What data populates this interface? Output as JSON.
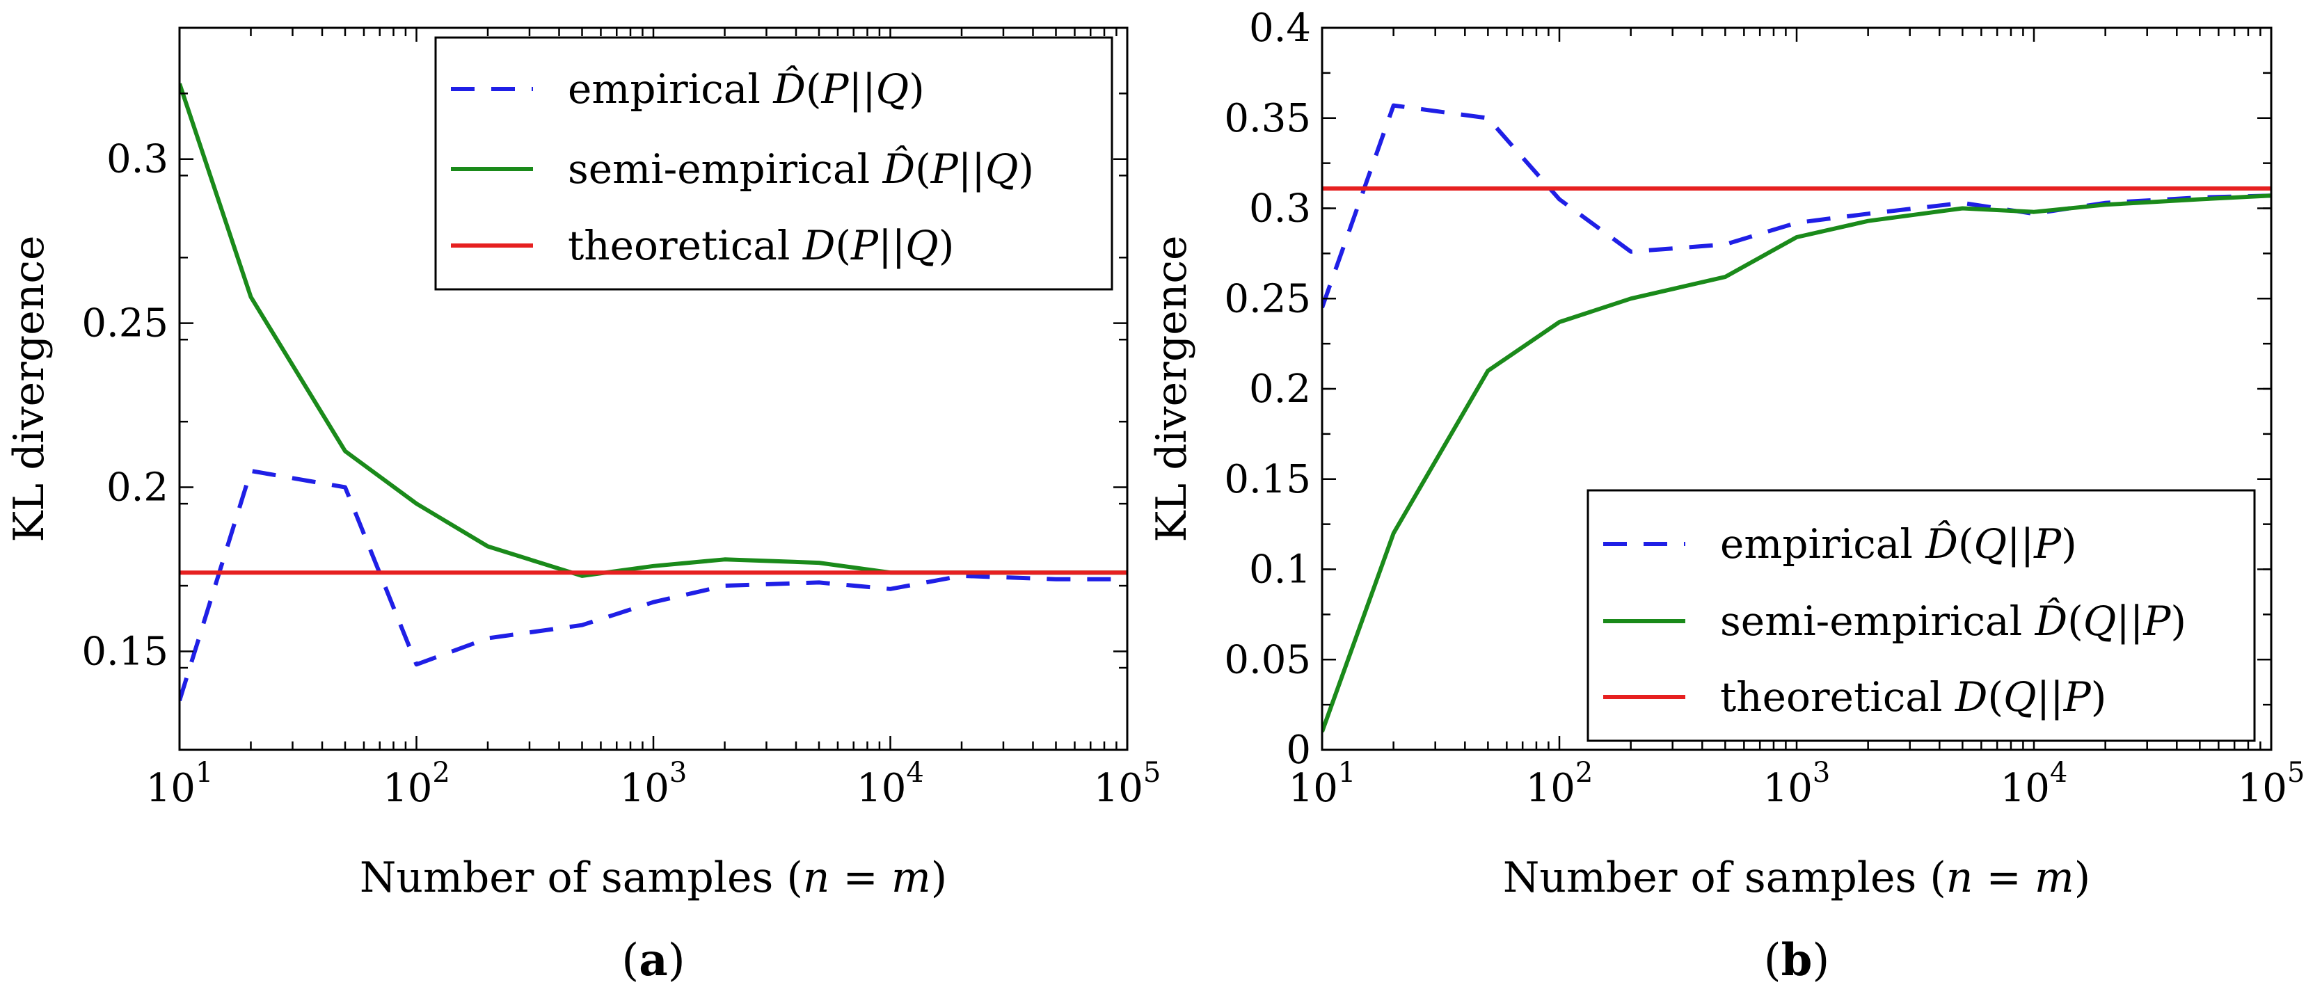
{
  "chart_data": [
    {
      "type": "line",
      "xscale": "log",
      "xlabel": "Number of samples (n = m)",
      "ylabel": "KL divergence",
      "xlim": [
        10,
        100000
      ],
      "ylim": [
        0.12,
        0.34
      ],
      "x_ticks": [
        10,
        100,
        1000,
        10000,
        100000
      ],
      "x_tick_labels": [
        {
          "base": "10",
          "exp": "1"
        },
        {
          "base": "10",
          "exp": "2"
        },
        {
          "base": "10",
          "exp": "3"
        },
        {
          "base": "10",
          "exp": "4"
        },
        {
          "base": "10",
          "exp": "5"
        }
      ],
      "y_ticks": [
        0.15,
        0.2,
        0.25,
        0.3
      ],
      "y_tick_labels": [
        "0.15",
        "0.2",
        "0.25",
        "0.3"
      ],
      "legend_position": "top-right",
      "subfigure_label": {
        "open": "(",
        "letter": "a",
        "close": ")"
      },
      "series": [
        {
          "name": "empirical D̂(P||Q)",
          "style": "dashed",
          "color": "#1f1fe6",
          "x": [
            10,
            20,
            50,
            100,
            200,
            500,
            1000,
            2000,
            5000,
            10000,
            20000,
            50000,
            100000
          ],
          "values": [
            0.135,
            0.205,
            0.2,
            0.146,
            0.154,
            0.158,
            0.165,
            0.17,
            0.171,
            0.169,
            0.173,
            0.172,
            0.172
          ]
        },
        {
          "name": "semi-empirical D̂(P||Q)",
          "style": "solid",
          "color": "#1a8a1a",
          "x": [
            10,
            20,
            50,
            100,
            200,
            500,
            1000,
            2000,
            5000,
            10000,
            20000,
            50000,
            100000
          ],
          "values": [
            0.323,
            0.258,
            0.211,
            0.195,
            0.182,
            0.173,
            0.176,
            0.178,
            0.177,
            0.174,
            0.174,
            0.174,
            0.174
          ]
        },
        {
          "name": "theoretical D(P||Q)",
          "style": "solid",
          "color": "#e62020",
          "x": [
            10,
            100000
          ],
          "values": [
            0.174,
            0.174
          ]
        }
      ],
      "legend_entries": [
        {
          "prefix": "empirical ",
          "math": "D̂(P||Q)"
        },
        {
          "prefix": "semi-empirical ",
          "math": "D̂(P||Q)"
        },
        {
          "prefix": "theoretical ",
          "math": "D(P||Q)"
        }
      ]
    },
    {
      "type": "line",
      "xscale": "log",
      "xlabel": "Number of samples (n = m)",
      "ylabel": "KL divergence",
      "xlim": [
        10,
        100000
      ],
      "ylim": [
        0,
        0.4
      ],
      "x_ticks": [
        10,
        100,
        1000,
        10000,
        100000
      ],
      "x_tick_labels": [
        {
          "base": "10",
          "exp": "1"
        },
        {
          "base": "10",
          "exp": "2"
        },
        {
          "base": "10",
          "exp": "3"
        },
        {
          "base": "10",
          "exp": "4"
        },
        {
          "base": "10",
          "exp": "5"
        }
      ],
      "y_ticks": [
        0,
        0.05,
        0.1,
        0.15,
        0.2,
        0.25,
        0.3,
        0.35,
        0.4
      ],
      "y_tick_labels": [
        "0",
        "0.05",
        "0.1",
        "0.15",
        "0.2",
        "0.25",
        "0.3",
        "0.35",
        "0.4"
      ],
      "legend_position": "bottom-right",
      "subfigure_label": {
        "open": "(",
        "letter": "b",
        "close": ")"
      },
      "series": [
        {
          "name": "empirical D̂(Q||P)",
          "style": "dashed",
          "color": "#1f1fe6",
          "x": [
            10,
            20,
            50,
            100,
            200,
            500,
            1000,
            2000,
            5000,
            10000,
            20000,
            50000,
            100000
          ],
          "values": [
            0.245,
            0.357,
            0.35,
            0.305,
            0.276,
            0.28,
            0.292,
            0.297,
            0.303,
            0.297,
            0.303,
            0.306,
            0.307
          ]
        },
        {
          "name": "semi-empirical D̂(Q||P)",
          "style": "solid",
          "color": "#1a8a1a",
          "x": [
            10,
            20,
            50,
            100,
            200,
            500,
            1000,
            2000,
            5000,
            10000,
            20000,
            50000,
            100000
          ],
          "values": [
            0.01,
            0.12,
            0.21,
            0.237,
            0.25,
            0.262,
            0.284,
            0.293,
            0.3,
            0.298,
            0.302,
            0.305,
            0.307
          ]
        },
        {
          "name": "theoretical D(Q||P)",
          "style": "solid",
          "color": "#e62020",
          "x": [
            10,
            100000
          ],
          "values": [
            0.311,
            0.311
          ]
        }
      ],
      "legend_entries": [
        {
          "prefix": "empirical ",
          "math": "D̂(Q||P)"
        },
        {
          "prefix": "semi-empirical ",
          "math": "D̂(Q||P)"
        },
        {
          "prefix": "theoretical ",
          "math": "D(Q||P)"
        }
      ]
    }
  ]
}
